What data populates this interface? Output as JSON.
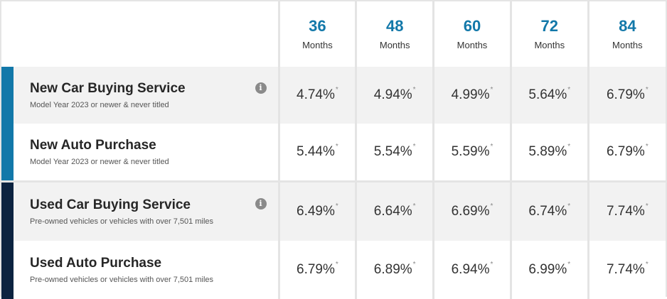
{
  "terms": [
    {
      "num": "36",
      "unit": "Months"
    },
    {
      "num": "48",
      "unit": "Months"
    },
    {
      "num": "60",
      "unit": "Months"
    },
    {
      "num": "72",
      "unit": "Months"
    },
    {
      "num": "84",
      "unit": "Months"
    }
  ],
  "colors": {
    "accent_blue": "#1278a9",
    "accent_navy": "#0c2340",
    "row_gray": "#f2f2f2",
    "border": "#e4e4e4"
  },
  "rows": [
    {
      "name": "New Car Buying Service",
      "desc": "Model Year 2023 or newer & never titled",
      "info_icon": true,
      "bar": "accent_blue",
      "rates": [
        "4.74%",
        "4.94%",
        "4.99%",
        "5.64%",
        "6.79%"
      ]
    },
    {
      "name": "New Auto Purchase",
      "desc": "Model Year 2023 or newer & never titled",
      "info_icon": false,
      "bar": "accent_blue",
      "rates": [
        "5.44%",
        "5.54%",
        "5.59%",
        "5.89%",
        "6.79%"
      ]
    },
    {
      "name": "Used Car Buying Service",
      "desc": "Pre-owned vehicles or vehicles with over 7,501 miles",
      "info_icon": true,
      "bar": "accent_navy",
      "rates": [
        "6.49%",
        "6.64%",
        "6.69%",
        "6.74%",
        "7.74%"
      ]
    },
    {
      "name": "Used Auto Purchase",
      "desc": "Pre-owned vehicles or vehicles with over 7,501 miles",
      "info_icon": false,
      "bar": "accent_navy",
      "rates": [
        "6.79%",
        "6.89%",
        "6.94%",
        "6.99%",
        "7.74%"
      ]
    }
  ],
  "footnote_mark": "*",
  "info_icon_glyph": "i"
}
